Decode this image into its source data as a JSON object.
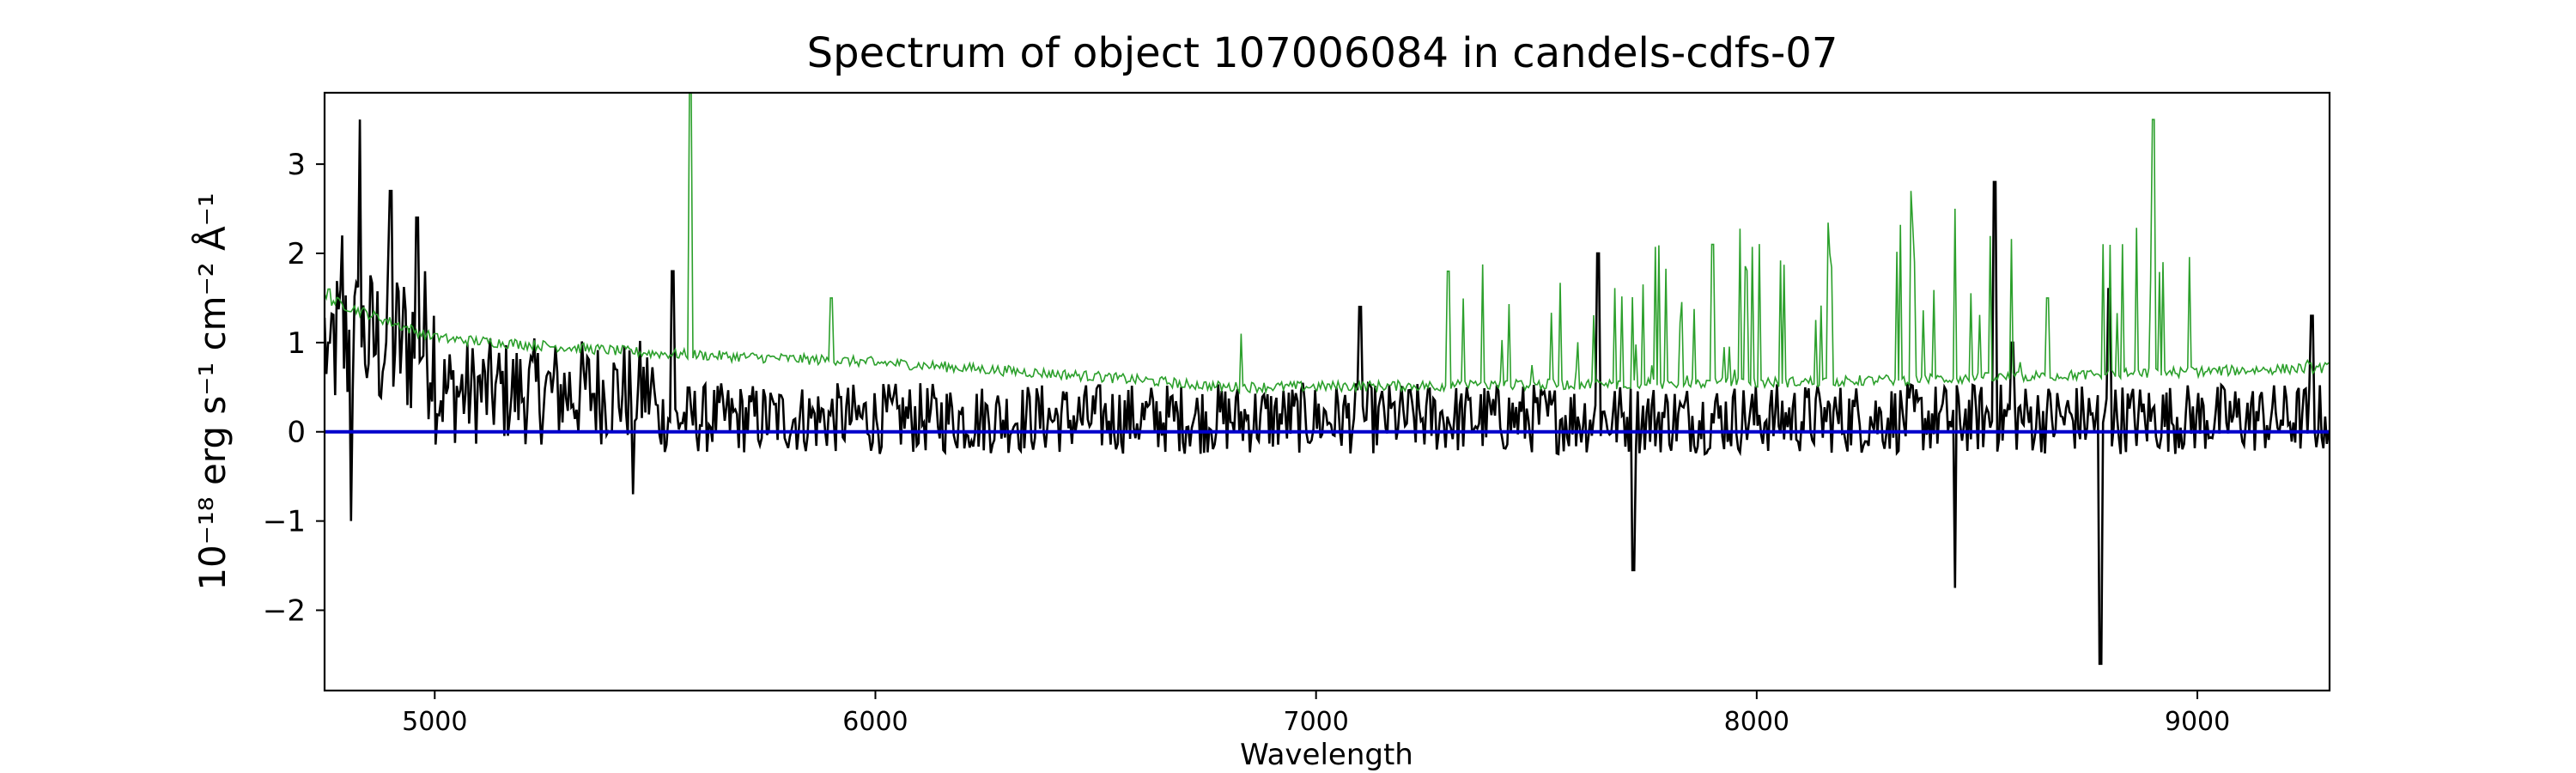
{
  "chart_data": {
    "type": "line",
    "title": "Spectrum of object 107006084 in candels-cdfs-07",
    "xlabel": "Wavelength",
    "ylabel": "10⁻¹⁸ erg s⁻¹ cm⁻² Å⁻¹",
    "xlim": [
      4750,
      9300
    ],
    "ylim": [
      -2.9,
      3.8
    ],
    "x_ticks": [
      5000,
      6000,
      7000,
      8000,
      9000
    ],
    "y_ticks": [
      -2,
      -1,
      0,
      1,
      2,
      3
    ],
    "grid": false,
    "series": [
      {
        "role": "flux",
        "color": "#000000",
        "x_range": [
          4750,
          9300
        ],
        "notable_points": [
          {
            "x": 4760,
            "y": 1.0
          },
          {
            "x": 4790,
            "y": 2.2
          },
          {
            "x": 4810,
            "y": -1.0
          },
          {
            "x": 4830,
            "y": 3.5
          },
          {
            "x": 4900,
            "y": 2.7
          },
          {
            "x": 4960,
            "y": 2.4
          },
          {
            "x": 5450,
            "y": -0.7
          },
          {
            "x": 5540,
            "y": 1.8
          },
          {
            "x": 7100,
            "y": 1.4
          },
          {
            "x": 7640,
            "y": 2.0
          },
          {
            "x": 7720,
            "y": -1.55
          },
          {
            "x": 8450,
            "y": -1.75
          },
          {
            "x": 8540,
            "y": 2.8
          },
          {
            "x": 8580,
            "y": 1.0
          },
          {
            "x": 8780,
            "y": -2.6
          },
          {
            "x": 8800,
            "y": 1.6
          },
          {
            "x": 9260,
            "y": 1.3
          }
        ],
        "baseline": 0.15,
        "noise": 0.45
      },
      {
        "role": "error",
        "color": "#2ca02c",
        "x_range": [
          4750,
          9300
        ],
        "notable_points": [
          {
            "x": 4760,
            "y": 1.6
          },
          {
            "x": 5000,
            "y": 1.1
          },
          {
            "x": 5580,
            "y": 3.8
          },
          {
            "x": 5900,
            "y": 1.5
          },
          {
            "x": 6000,
            "y": 0.75
          },
          {
            "x": 6500,
            "y": 0.65
          },
          {
            "x": 6700,
            "y": 0.5
          },
          {
            "x": 6830,
            "y": 1.1
          },
          {
            "x": 7300,
            "y": 1.8
          },
          {
            "x": 7900,
            "y": 2.1
          },
          {
            "x": 8350,
            "y": 2.7
          },
          {
            "x": 8450,
            "y": 2.5
          },
          {
            "x": 8660,
            "y": 1.5
          },
          {
            "x": 8900,
            "y": 3.5
          },
          {
            "x": 9250,
            "y": 0.8
          }
        ]
      },
      {
        "role": "continuum",
        "color": "#0000cc",
        "x": [
          4750,
          9300
        ],
        "y": [
          0.0,
          0.0
        ]
      }
    ]
  }
}
